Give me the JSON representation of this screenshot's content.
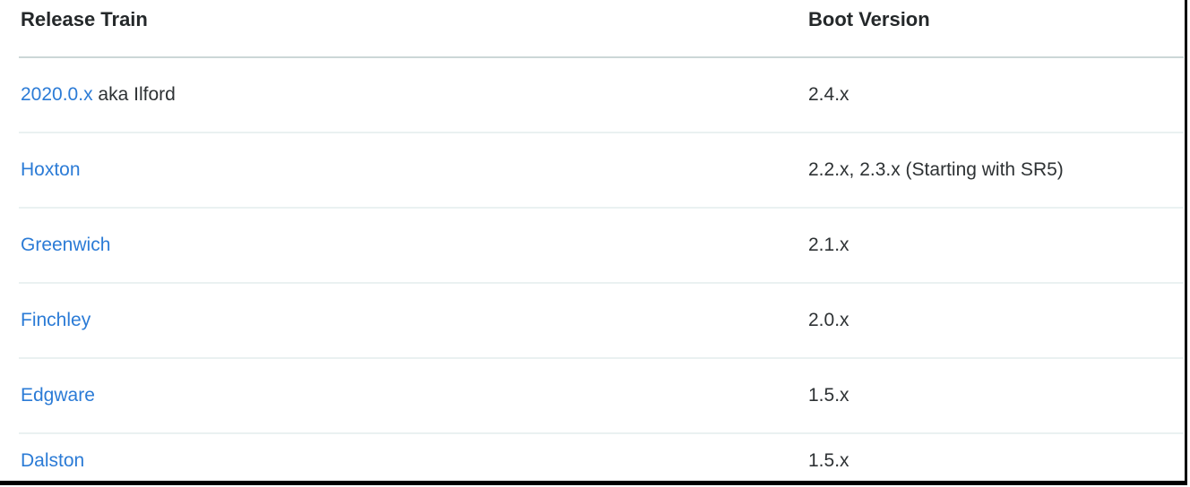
{
  "table": {
    "columns": [
      {
        "label": "Release Train"
      },
      {
        "label": "Boot Version"
      }
    ],
    "rows": [
      {
        "link": "2020.0.x",
        "suffix": " aka Ilford",
        "boot_version": "2.4.x"
      },
      {
        "link": "Hoxton",
        "suffix": "",
        "boot_version": "2.2.x, 2.3.x (Starting with SR5)"
      },
      {
        "link": "Greenwich",
        "suffix": "",
        "boot_version": "2.1.x"
      },
      {
        "link": "Finchley",
        "suffix": "",
        "boot_version": "2.0.x"
      },
      {
        "link": "Edgware",
        "suffix": "",
        "boot_version": "1.5.x"
      },
      {
        "link": "Dalston",
        "suffix": "",
        "boot_version": "1.5.x"
      }
    ]
  },
  "colors": {
    "link": "#2b7bd6",
    "text": "#2e3234",
    "header_text": "#24282a",
    "header_divider": "#ccd7d7",
    "row_divider": "#eaf1f1",
    "frame_border": "#000000"
  }
}
